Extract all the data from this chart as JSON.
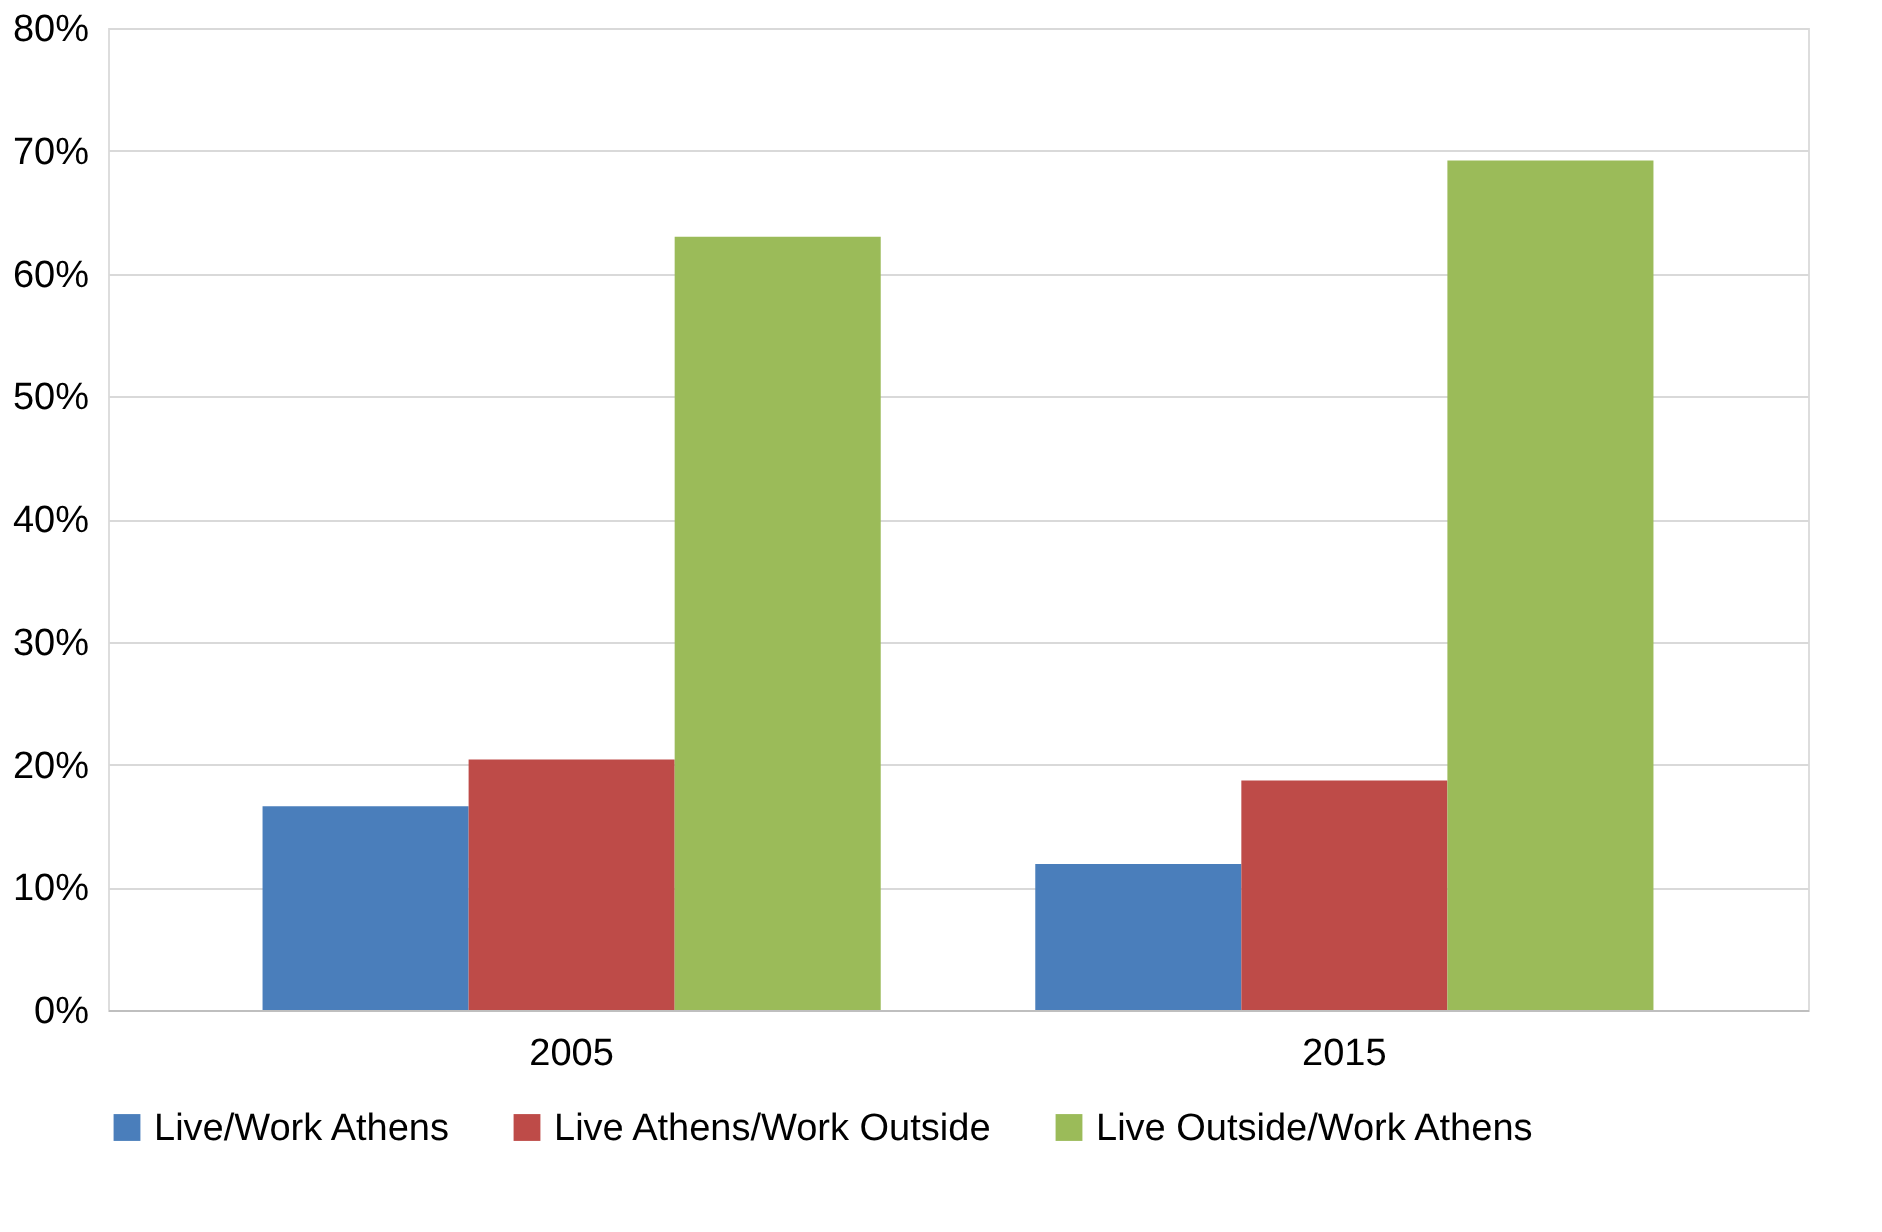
{
  "chart_data": {
    "type": "bar",
    "categories": [
      "2005",
      "2015"
    ],
    "series": [
      {
        "name": "Live/Work Athens",
        "color": "#4a7ebb",
        "values": [
          16.6,
          11.9
        ]
      },
      {
        "name": "Live Athens/Work Outside",
        "color": "#be4b48",
        "values": [
          20.4,
          18.7
        ]
      },
      {
        "name": "Live Outside/Work Athens",
        "color": "#9bbb59",
        "values": [
          63,
          69.2
        ]
      }
    ],
    "ylim": [
      0,
      80
    ],
    "yticks": [
      {
        "value": 0,
        "label": "0%"
      },
      {
        "value": 10,
        "label": "10%"
      },
      {
        "value": 20,
        "label": "20%"
      },
      {
        "value": 30,
        "label": "30%"
      },
      {
        "value": 40,
        "label": "40%"
      },
      {
        "value": 50,
        "label": "50%"
      },
      {
        "value": 60,
        "label": "60%"
      },
      {
        "value": 70,
        "label": "70%"
      },
      {
        "value": 80,
        "label": "80%"
      }
    ],
    "grid": "y",
    "legend": "bottom"
  }
}
